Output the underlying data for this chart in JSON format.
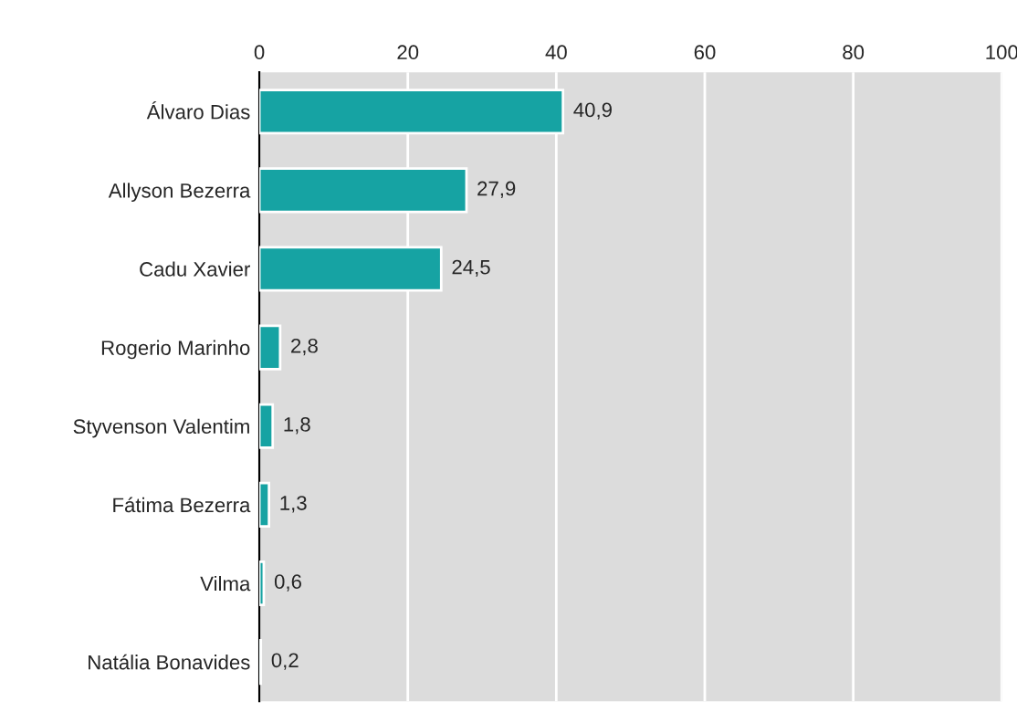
{
  "chart_data": {
    "type": "bar",
    "orientation": "horizontal",
    "categories": [
      "Álvaro Dias",
      "Allyson Bezerra",
      "Cadu Xavier",
      "Rogerio Marinho",
      "Styvenson Valentim",
      "Fátima Bezerra",
      "Vilma",
      "Natália Bonavides"
    ],
    "values": [
      40.9,
      27.9,
      24.5,
      2.8,
      1.8,
      1.3,
      0.6,
      0.2
    ],
    "value_labels": [
      "40,9",
      "27,9",
      "24,5",
      "2,8",
      "1,8",
      "1,3",
      "0,6",
      "0,2"
    ],
    "color": "#16a3a3",
    "xlim": [
      0,
      100
    ],
    "xticks": [
      0,
      20,
      40,
      60,
      80,
      100
    ],
    "grid": "x"
  }
}
